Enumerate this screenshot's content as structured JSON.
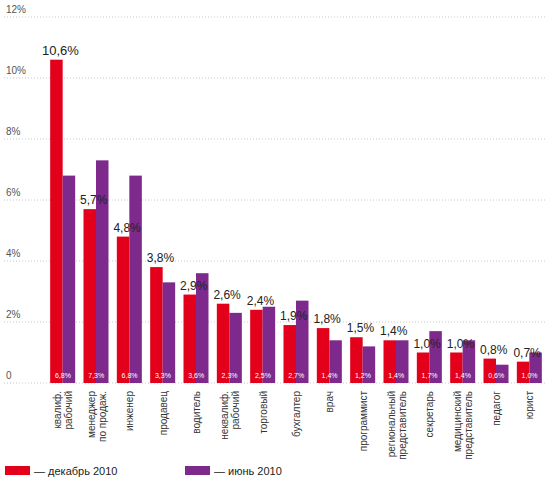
{
  "chart_data": {
    "type": "bar",
    "categories": [
      "квалиф. рабочий",
      "менеджер по продаж.",
      "инженер",
      "продавец",
      "водитель",
      "неквалиф. рабочий",
      "торговый",
      "бухгалтер",
      "врач",
      "программист",
      "региональный представитель",
      "секретарь",
      "медицинский представитель",
      "педагог",
      "юрист"
    ],
    "series": [
      {
        "name": "— декабрь 2010",
        "color": "#e2001a",
        "values": [
          10.6,
          5.7,
          4.8,
          3.8,
          2.9,
          2.6,
          2.4,
          1.9,
          1.8,
          1.5,
          1.4,
          1.0,
          1.0,
          0.8,
          0.7
        ],
        "value_labels": [
          "10,6%",
          "5,7%",
          "4,8%",
          "3,8%",
          "2,9%",
          "2,6%",
          "2,4%",
          "1,9%",
          "1,8%",
          "1,5%",
          "1,4%",
          "1,0%",
          "1,0%",
          "0,8%",
          "0,7%"
        ]
      },
      {
        "name": "— июнь 2010",
        "color": "#7d2a8c",
        "values": [
          6.8,
          7.3,
          6.8,
          3.3,
          3.6,
          2.3,
          2.5,
          2.7,
          1.4,
          1.2,
          1.4,
          1.7,
          1.4,
          0.6,
          1.0
        ],
        "value_labels": [
          "6,8%",
          "7,3%",
          "6,8%",
          "3,3%",
          "3,6%",
          "2,3%",
          "2,5%",
          "2,7%",
          "1,4%",
          "1,2%",
          "1,4%",
          "1,7%",
          "1,4%",
          "0,6%",
          "1,0%"
        ]
      }
    ],
    "ylim": [
      0,
      12
    ],
    "yticks": [
      0,
      {
        "value": 2,
        "label": "2%"
      },
      {
        "value": 4,
        "label": "4%"
      },
      {
        "value": 6,
        "label": "6%"
      },
      {
        "value": 8,
        "label": "8%"
      },
      {
        "value": 10,
        "label": "10%"
      },
      {
        "value": 12,
        "label": "12%"
      }
    ],
    "grid": true,
    "data_labels": true,
    "legend": "bottom-left"
  }
}
